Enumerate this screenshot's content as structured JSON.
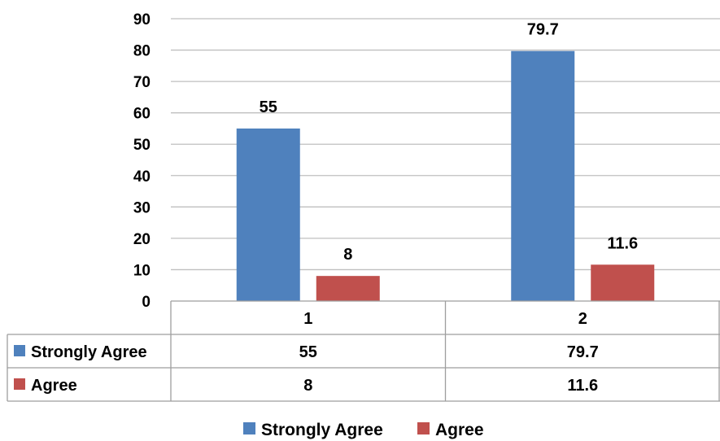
{
  "chart_data": {
    "type": "bar",
    "categories": [
      "1",
      "2"
    ],
    "series": [
      {
        "name": "Strongly Agree",
        "values": [
          55,
          79.7
        ],
        "color": "#4F81BD"
      },
      {
        "name": "Agree",
        "values": [
          8,
          11.6
        ],
        "color": "#C0504D"
      }
    ],
    "ylim": [
      0,
      90
    ],
    "yticks": [
      0,
      10,
      20,
      30,
      40,
      50,
      60,
      70,
      80,
      90
    ],
    "grid": true,
    "data_labels": true,
    "data_table": true,
    "legend_position": "bottom"
  }
}
